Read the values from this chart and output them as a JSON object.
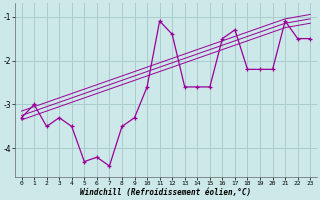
{
  "x": [
    0,
    1,
    2,
    3,
    4,
    5,
    6,
    7,
    8,
    9,
    10,
    11,
    12,
    13,
    14,
    15,
    16,
    17,
    18,
    19,
    20,
    21,
    22,
    23
  ],
  "y_main": [
    -3.3,
    -3.0,
    -3.5,
    -3.3,
    -3.5,
    -4.3,
    -4.2,
    -4.4,
    -3.5,
    -3.3,
    -2.6,
    -1.1,
    -1.4,
    -2.6,
    -2.6,
    -2.6,
    -1.5,
    -1.3,
    -2.2,
    -2.2,
    -2.2,
    -1.1,
    -1.5,
    -1.5
  ],
  "y_reg1": [
    -3.25,
    -3.15,
    -3.05,
    -2.95,
    -2.85,
    -2.75,
    -2.65,
    -2.55,
    -2.45,
    -2.35,
    -2.25,
    -2.15,
    -2.05,
    -1.95,
    -1.85,
    -1.75,
    -1.65,
    -1.55,
    -1.45,
    -1.35,
    -1.25,
    -1.15,
    -1.1,
    -1.05
  ],
  "y_reg2": [
    -3.35,
    -3.25,
    -3.15,
    -3.05,
    -2.95,
    -2.85,
    -2.75,
    -2.65,
    -2.55,
    -2.45,
    -2.35,
    -2.25,
    -2.15,
    -2.05,
    -1.95,
    -1.85,
    -1.75,
    -1.65,
    -1.55,
    -1.45,
    -1.35,
    -1.25,
    -1.2,
    -1.15
  ],
  "y_reg3": [
    -3.15,
    -3.05,
    -2.95,
    -2.85,
    -2.75,
    -2.65,
    -2.55,
    -2.45,
    -2.35,
    -2.25,
    -2.15,
    -2.05,
    -1.95,
    -1.85,
    -1.75,
    -1.65,
    -1.55,
    -1.45,
    -1.35,
    -1.25,
    -1.15,
    -1.05,
    -1.0,
    -0.95
  ],
  "line_color": "#990099",
  "bg_color": "#cce8e8",
  "grid_color": "#aacccc",
  "xlabel": "Windchill (Refroidissement éolien,°C)",
  "yticks": [
    -4,
    -3,
    -2,
    -1
  ],
  "xticks": [
    0,
    1,
    2,
    3,
    4,
    5,
    6,
    7,
    8,
    9,
    10,
    11,
    12,
    13,
    14,
    15,
    16,
    17,
    18,
    19,
    20,
    21,
    22,
    23
  ],
  "ylim": [
    -4.65,
    -0.7
  ],
  "xlim": [
    -0.5,
    23.5
  ],
  "figsize": [
    3.2,
    2.0
  ],
  "dpi": 100
}
